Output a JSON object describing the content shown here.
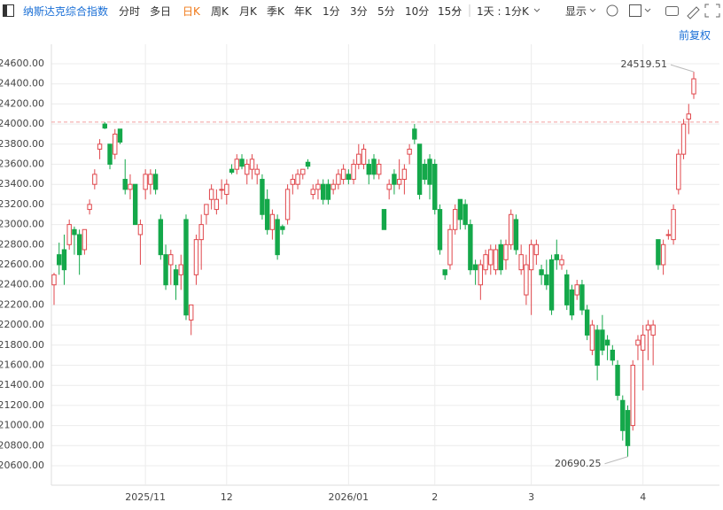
{
  "toolbar": {
    "title": "纳斯达克综合指数",
    "tabs": [
      "分时",
      "多日",
      "日K",
      "周K",
      "月K",
      "季K",
      "年K",
      "1分",
      "3分",
      "5分",
      "10分",
      "15分"
    ],
    "range": "1天 : 1分K",
    "display": "显示",
    "adjust": "前复权"
  },
  "chart_data": {
    "type": "candlestick",
    "up_color": "#e0474c",
    "down_color": "#14a84a",
    "grid": true,
    "price_line": 24020,
    "ylim": [
      20600,
      24600
    ],
    "yticks": [
      {
        "value": 20600,
        "label": "20600.00"
      },
      {
        "value": 20800,
        "label": "20800.00"
      },
      {
        "value": 21000,
        "label": "21000.00"
      },
      {
        "value": 21200,
        "label": "21200.00"
      },
      {
        "value": 21400,
        "label": "21400.00"
      },
      {
        "value": 21600,
        "label": "21600.00"
      },
      {
        "value": 21800,
        "label": "21800.00"
      },
      {
        "value": 22000,
        "label": "22000.00"
      },
      {
        "value": 22200,
        "label": "22200.00"
      },
      {
        "value": 22400,
        "label": "22400.00"
      },
      {
        "value": 22600,
        "label": "22600.00"
      },
      {
        "value": 22800,
        "label": "22800.00"
      },
      {
        "value": 23000,
        "label": "23000.00"
      },
      {
        "value": 23200,
        "label": "23200.00"
      },
      {
        "value": 23400,
        "label": "23400.00"
      },
      {
        "value": 23600,
        "label": "23600.00"
      },
      {
        "value": 23800,
        "label": "23800.00"
      },
      {
        "value": 24000,
        "label": "24000.00"
      },
      {
        "value": 24200,
        "label": "24200.00"
      },
      {
        "value": 24400,
        "label": "24400.00"
      },
      {
        "value": 24600,
        "label": "24600.00"
      }
    ],
    "categories": [
      null,
      null,
      null,
      null,
      null,
      null,
      null,
      null,
      null,
      null,
      null,
      null,
      null,
      null,
      null,
      null,
      null,
      null,
      "2025/11",
      null,
      null,
      null,
      null,
      null,
      null,
      null,
      null,
      null,
      null,
      null,
      null,
      null,
      null,
      null,
      "12",
      null,
      null,
      null,
      null,
      null,
      null,
      null,
      null,
      null,
      null,
      null,
      null,
      null,
      null,
      null,
      null,
      null,
      null,
      null,
      null,
      null,
      null,
      null,
      "2026/01",
      null,
      null,
      null,
      null,
      null,
      null,
      null,
      null,
      null,
      null,
      null,
      null,
      null,
      null,
      null,
      null,
      "2",
      null,
      null,
      null,
      null,
      null,
      null,
      null,
      null,
      null,
      null,
      null,
      null,
      null,
      null,
      null,
      null,
      null,
      null,
      "3",
      null,
      null,
      null,
      null,
      null,
      null,
      null,
      null,
      null,
      null,
      null,
      null,
      null,
      null,
      null,
      null,
      null,
      null,
      null,
      null,
      null,
      "4",
      null,
      null,
      null,
      null,
      null,
      null,
      null,
      null,
      null,
      null
    ],
    "candles": [
      [
        22400,
        22520,
        22200,
        22500
      ],
      [
        22700,
        22820,
        22500,
        22600
      ],
      [
        22750,
        22900,
        22400,
        22550
      ],
      [
        22800,
        23050,
        22750,
        23000
      ],
      [
        22950,
        22980,
        22700,
        22900
      ],
      [
        22900,
        22950,
        22500,
        22700
      ],
      [
        22750,
        22950,
        22700,
        22950
      ],
      [
        23150,
        23250,
        23100,
        23200
      ],
      [
        23400,
        23550,
        23350,
        23500
      ],
      [
        23750,
        23850,
        23650,
        23800
      ],
      [
        24000,
        24020,
        23950,
        23960
      ],
      [
        23800,
        23800,
        23550,
        23600
      ],
      [
        23700,
        23950,
        23650,
        23900
      ],
      [
        23950,
        23950,
        23800,
        23820
      ],
      [
        23450,
        23650,
        23300,
        23350
      ],
      [
        23350,
        23500,
        23250,
        23400
      ],
      [
        23400,
        23400,
        23000,
        23000
      ],
      [
        22900,
        23050,
        22600,
        23000
      ],
      [
        23350,
        23550,
        23250,
        23500
      ],
      [
        23400,
        23550,
        23300,
        23500
      ],
      [
        23500,
        23550,
        23300,
        23350
      ],
      [
        23050,
        23100,
        22650,
        22700
      ],
      [
        22700,
        22800,
        22350,
        22400
      ],
      [
        22600,
        22750,
        22400,
        22700
      ],
      [
        22550,
        22600,
        22250,
        22400
      ],
      [
        22500,
        22700,
        22350,
        22600
      ],
      [
        23050,
        23100,
        22050,
        22100
      ],
      [
        22050,
        22200,
        21900,
        22200
      ],
      [
        22500,
        22900,
        22400,
        22850
      ],
      [
        22850,
        23100,
        22550,
        23000
      ],
      [
        23100,
        23200,
        23000,
        23200
      ],
      [
        23250,
        23400,
        23150,
        23350
      ],
      [
        23150,
        23350,
        23100,
        23250
      ],
      [
        23350,
        23450,
        23250,
        23350
      ],
      [
        23300,
        23450,
        23200,
        23400
      ],
      [
        23550,
        23600,
        23500,
        23520
      ],
      [
        23550,
        23700,
        23500,
        23650
      ],
      [
        23650,
        23700,
        23550,
        23580
      ],
      [
        23500,
        23650,
        23400,
        23600
      ],
      [
        23550,
        23700,
        23450,
        23650
      ],
      [
        23500,
        23600,
        23400,
        23550
      ],
      [
        23450,
        23500,
        23050,
        23100
      ],
      [
        23250,
        23350,
        22900,
        22950
      ],
      [
        22950,
        23150,
        22850,
        23100
      ],
      [
        23050,
        23100,
        22650,
        22700
      ],
      [
        22980,
        23000,
        22900,
        22950
      ],
      [
        23050,
        23400,
        23000,
        23350
      ],
      [
        23400,
        23500,
        23300,
        23450
      ],
      [
        23400,
        23550,
        23350,
        23500
      ],
      [
        23500,
        23550,
        23450,
        23550
      ],
      [
        23620,
        23650,
        23550,
        23580
      ],
      [
        23300,
        23400,
        23250,
        23350
      ],
      [
        23350,
        23450,
        23250,
        23400
      ],
      [
        23400,
        23450,
        23200,
        23250
      ],
      [
        23400,
        23450,
        23200,
        23250
      ],
      [
        23350,
        23450,
        23300,
        23400
      ],
      [
        23400,
        23550,
        23350,
        23500
      ],
      [
        23450,
        23600,
        23400,
        23550
      ],
      [
        23500,
        23550,
        23400,
        23450
      ],
      [
        23450,
        23650,
        23400,
        23600
      ],
      [
        23600,
        23800,
        23550,
        23700
      ],
      [
        23600,
        23800,
        23550,
        23750
      ],
      [
        23600,
        23650,
        23400,
        23500
      ],
      [
        23650,
        23700,
        23450,
        23500
      ],
      [
        23500,
        23650,
        23450,
        23600
      ],
      [
        23150,
        23150,
        22950,
        22950
      ],
      [
        23350,
        23450,
        23250,
        23400
      ],
      [
        23500,
        23550,
        23300,
        23400
      ],
      [
        23400,
        23650,
        23350,
        23450
      ],
      [
        23450,
        23600,
        23300,
        23550
      ],
      [
        23700,
        23800,
        23600,
        23750
      ],
      [
        23950,
        24000,
        23800,
        23850
      ],
      [
        23800,
        23800,
        23250,
        23300
      ],
      [
        23600,
        23650,
        23400,
        23450
      ],
      [
        23650,
        23700,
        23250,
        23400
      ],
      [
        23600,
        23650,
        23100,
        23150
      ],
      [
        23150,
        23200,
        22700,
        22750
      ],
      [
        22550,
        22550,
        22450,
        22500
      ],
      [
        22600,
        23000,
        22550,
        22950
      ],
      [
        22950,
        23200,
        22900,
        23150
      ],
      [
        23250,
        23250,
        22950,
        23050
      ],
      [
        23200,
        23250,
        22950,
        23000
      ],
      [
        23000,
        23050,
        22500,
        22550
      ],
      [
        22600,
        22650,
        22400,
        22550
      ],
      [
        22400,
        22650,
        22250,
        22600
      ],
      [
        22550,
        22750,
        22500,
        22700
      ],
      [
        22600,
        22800,
        22500,
        22750
      ],
      [
        22550,
        22800,
        22500,
        22750
      ],
      [
        22800,
        22850,
        22500,
        22550
      ],
      [
        22650,
        22850,
        22550,
        22800
      ],
      [
        22800,
        23150,
        22750,
        23100
      ],
      [
        23050,
        23100,
        22700,
        22750
      ],
      [
        22550,
        22800,
        22500,
        22700
      ],
      [
        22300,
        22700,
        22200,
        22600
      ],
      [
        22550,
        22850,
        22100,
        22800
      ],
      [
        22700,
        22850,
        22600,
        22800
      ],
      [
        22550,
        22600,
        22400,
        22500
      ],
      [
        22500,
        22650,
        22350,
        22400
      ],
      [
        22650,
        22700,
        22100,
        22150
      ],
      [
        22700,
        22850,
        22550,
        22650
      ],
      [
        22600,
        22700,
        22550,
        22650
      ],
      [
        22500,
        22550,
        22150,
        22200
      ],
      [
        22350,
        22400,
        22050,
        22100
      ],
      [
        22300,
        22450,
        22250,
        22400
      ],
      [
        22400,
        22450,
        22100,
        22150
      ],
      [
        22150,
        22200,
        21850,
        21900
      ],
      [
        21750,
        22050,
        21700,
        22000
      ],
      [
        21950,
        22000,
        21450,
        21600
      ],
      [
        21950,
        22100,
        21700,
        21750
      ],
      [
        21850,
        21900,
        21650,
        21800
      ],
      [
        21750,
        21800,
        21600,
        21650
      ],
      [
        21600,
        21650,
        21250,
        21300
      ],
      [
        21250,
        21300,
        20850,
        20950
      ],
      [
        21150,
        21200,
        20690.25,
        20800
      ],
      [
        21000,
        21650,
        20950,
        21600
      ],
      [
        21800,
        21900,
        21650,
        21850
      ],
      [
        21750,
        22000,
        21350,
        21900
      ],
      [
        21950,
        22050,
        21650,
        22000
      ],
      [
        21900,
        22050,
        21600,
        22000
      ],
      [
        22850,
        22850,
        22550,
        22600
      ],
      [
        22600,
        22850,
        22500,
        22800
      ],
      [
        22900,
        22950,
        22850,
        22900
      ],
      [
        22850,
        23200,
        22800,
        23150
      ],
      [
        23350,
        23750,
        23300,
        23700
      ],
      [
        23700,
        24050,
        23650,
        24000
      ],
      [
        24050,
        24200,
        23900,
        24100
      ],
      [
        24300,
        24519.51,
        24250,
        24450
      ]
    ]
  }
}
